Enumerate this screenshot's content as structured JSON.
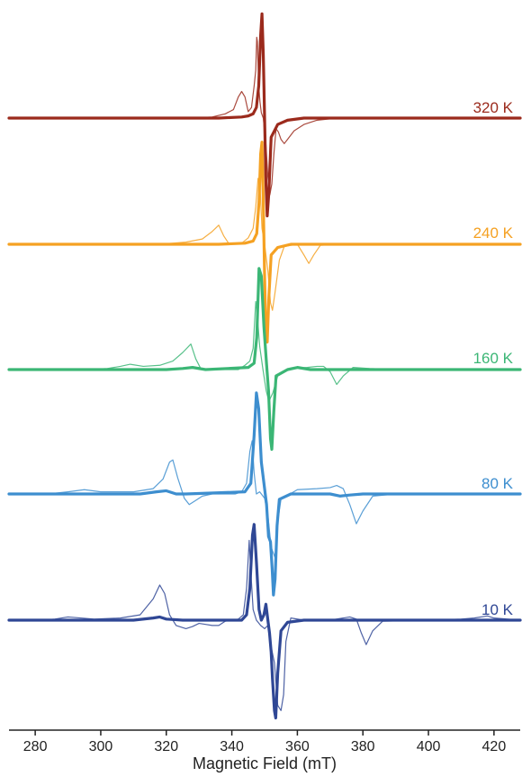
{
  "chart_data": {
    "type": "line",
    "title": "",
    "xlabel": "Magnetic Field (mT)",
    "ylabel": "",
    "xlim": [
      272,
      428
    ],
    "x_ticks": [
      280,
      300,
      320,
      340,
      360,
      380,
      400,
      420
    ],
    "grid": false,
    "legend": "none",
    "series": [
      {
        "name": "320 K",
        "color": "#9b2a1c",
        "thick": [
          [
            272,
            0
          ],
          [
            336,
            0
          ],
          [
            343,
            0.01
          ],
          [
            345,
            0.02
          ],
          [
            346.5,
            0.04
          ],
          [
            347.5,
            0.1
          ],
          [
            348.2,
            0.3
          ],
          [
            348.8,
            0.78
          ],
          [
            349.2,
            0.98
          ],
          [
            349.6,
            0.6
          ],
          [
            350.0,
            0.0
          ],
          [
            350.4,
            -0.6
          ],
          [
            350.8,
            -0.92
          ],
          [
            351.3,
            -0.7
          ],
          [
            352,
            -0.18
          ],
          [
            354,
            -0.06
          ],
          [
            357,
            -0.02
          ],
          [
            362,
            0
          ],
          [
            428,
            0
          ]
        ],
        "thin": [
          [
            272,
            0
          ],
          [
            328,
            0
          ],
          [
            334,
            0.01
          ],
          [
            338,
            0.04
          ],
          [
            340.5,
            0.08
          ],
          [
            342,
            0.2
          ],
          [
            343,
            0.25
          ],
          [
            344,
            0.2
          ],
          [
            345,
            0.06
          ],
          [
            346,
            0.1
          ],
          [
            346.8,
            0.3
          ],
          [
            347.3,
            0.45
          ],
          [
            347.6,
            0.76
          ],
          [
            347.8,
            0.72
          ],
          [
            348.2,
            0.3
          ],
          [
            348.6,
            0.15
          ],
          [
            349,
            0.05
          ],
          [
            349.6,
            0.0
          ],
          [
            350.4,
            -0.25
          ],
          [
            351,
            -0.55
          ],
          [
            351.6,
            -0.72
          ],
          [
            352.2,
            -0.62
          ],
          [
            352.8,
            -0.35
          ],
          [
            353.5,
            -0.1
          ],
          [
            354.2,
            -0.13
          ],
          [
            355,
            -0.2
          ],
          [
            356,
            -0.24
          ],
          [
            357,
            -0.2
          ],
          [
            359,
            -0.12
          ],
          [
            362,
            -0.06
          ],
          [
            366,
            -0.02
          ],
          [
            372,
            0
          ],
          [
            428,
            0
          ]
        ]
      },
      {
        "name": "240 K",
        "color": "#f5a122",
        "thick": [
          [
            272,
            0
          ],
          [
            336,
            0
          ],
          [
            344,
            0.01
          ],
          [
            346.5,
            0.03
          ],
          [
            347.6,
            0.1
          ],
          [
            348.3,
            0.4
          ],
          [
            348.8,
            0.85
          ],
          [
            349.2,
            0.96
          ],
          [
            349.6,
            0.4
          ],
          [
            350.0,
            -0.3
          ],
          [
            350.4,
            -0.85
          ],
          [
            350.8,
            -0.92
          ],
          [
            351.3,
            -0.5
          ],
          [
            352,
            -0.1
          ],
          [
            354,
            -0.03
          ],
          [
            358,
            0
          ],
          [
            428,
            0
          ]
        ],
        "thin": [
          [
            272,
            0
          ],
          [
            318,
            0
          ],
          [
            326,
            0.02
          ],
          [
            331,
            0.05
          ],
          [
            334,
            0.12
          ],
          [
            336,
            0.18
          ],
          [
            337.5,
            0.08
          ],
          [
            339,
            0.01
          ],
          [
            343,
            0.01
          ],
          [
            345,
            0.06
          ],
          [
            346.5,
            0.15
          ],
          [
            347.3,
            0.35
          ],
          [
            348,
            0.62
          ],
          [
            348.6,
            0.55
          ],
          [
            349.2,
            0.15
          ],
          [
            350,
            0.0
          ],
          [
            351,
            -0.25
          ],
          [
            351.8,
            -0.55
          ],
          [
            352.4,
            -0.62
          ],
          [
            353.2,
            -0.45
          ],
          [
            354.5,
            -0.15
          ],
          [
            356,
            -0.02
          ],
          [
            360,
            0.0
          ],
          [
            362,
            -0.1
          ],
          [
            363.5,
            -0.18
          ],
          [
            365,
            -0.1
          ],
          [
            367,
            -0.01
          ],
          [
            372,
            0
          ],
          [
            428,
            0
          ]
        ]
      },
      {
        "name": "160 K",
        "color": "#3bb675",
        "thick": [
          [
            272,
            0
          ],
          [
            320,
            0
          ],
          [
            325,
            0.01
          ],
          [
            328,
            0.02
          ],
          [
            332,
            0.0
          ],
          [
            345,
            0.02
          ],
          [
            346.8,
            0.06
          ],
          [
            347.6,
            0.3
          ],
          [
            348.3,
            0.95
          ],
          [
            349,
            0.88
          ],
          [
            349.8,
            0.4
          ],
          [
            350.6,
            0.05
          ],
          [
            351.2,
            -0.2
          ],
          [
            351.8,
            -0.65
          ],
          [
            352.2,
            -0.75
          ],
          [
            352.8,
            -0.4
          ],
          [
            353.5,
            -0.06
          ],
          [
            357,
            0.0
          ],
          [
            360,
            0.02
          ],
          [
            364,
            0.0
          ],
          [
            428,
            0
          ]
        ],
        "thin": [
          [
            272,
            0
          ],
          [
            296,
            0
          ],
          [
            302,
            0.01
          ],
          [
            306,
            0.03
          ],
          [
            309,
            0.05
          ],
          [
            313,
            0.03
          ],
          [
            318,
            0.04
          ],
          [
            322,
            0.08
          ],
          [
            325,
            0.16
          ],
          [
            327.5,
            0.24
          ],
          [
            329,
            0.1
          ],
          [
            330.5,
            0.01
          ],
          [
            334,
            0.0
          ],
          [
            342,
            0.0
          ],
          [
            344,
            0.04
          ],
          [
            345.5,
            0.08
          ],
          [
            346.5,
            0.2
          ],
          [
            347.3,
            0.64
          ],
          [
            347.8,
            0.5
          ],
          [
            348.5,
            0.22
          ],
          [
            349.5,
            0.0
          ],
          [
            350.5,
            -0.2
          ],
          [
            351.3,
            -0.3
          ],
          [
            352.5,
            -0.22
          ],
          [
            354,
            -0.06
          ],
          [
            358,
            0.01
          ],
          [
            363,
            0.02
          ],
          [
            366,
            0.03
          ],
          [
            368,
            0.03
          ],
          [
            370,
            -0.02
          ],
          [
            372,
            -0.14
          ],
          [
            374,
            -0.06
          ],
          [
            377,
            0.02
          ],
          [
            382,
            0.01
          ],
          [
            390,
            0.0
          ],
          [
            428,
            0
          ]
        ]
      },
      {
        "name": "80 K",
        "color": "#3d8ecf",
        "thick": [
          [
            272,
            0
          ],
          [
            312,
            0
          ],
          [
            317,
            0.02
          ],
          [
            320,
            0.03
          ],
          [
            323,
            0.0
          ],
          [
            326,
            0.0
          ],
          [
            344,
            0.02
          ],
          [
            345.8,
            0.1
          ],
          [
            346.8,
            0.55
          ],
          [
            347.5,
            0.95
          ],
          [
            348.2,
            0.8
          ],
          [
            349,
            0.3
          ],
          [
            350,
            0.05
          ],
          [
            350.6,
            -0.1
          ],
          [
            351.2,
            -0.4
          ],
          [
            351.8,
            -0.45
          ],
          [
            352.3,
            -0.7
          ],
          [
            352.7,
            -0.95
          ],
          [
            353.2,
            -0.8
          ],
          [
            353.8,
            -0.3
          ],
          [
            354.5,
            -0.05
          ],
          [
            358,
            0.0
          ],
          [
            370,
            0.0
          ],
          [
            373,
            -0.02
          ],
          [
            376,
            -0.01
          ],
          [
            380,
            0.0
          ],
          [
            428,
            0
          ]
        ],
        "thin": [
          [
            272,
            0
          ],
          [
            284,
            0.0
          ],
          [
            290,
            0.02
          ],
          [
            295,
            0.04
          ],
          [
            300,
            0.02
          ],
          [
            310,
            0.02
          ],
          [
            316,
            0.05
          ],
          [
            319,
            0.14
          ],
          [
            321,
            0.3
          ],
          [
            322,
            0.32
          ],
          [
            323.5,
            0.15
          ],
          [
            325.5,
            -0.04
          ],
          [
            327,
            -0.1
          ],
          [
            329,
            -0.06
          ],
          [
            331,
            -0.02
          ],
          [
            334,
            0.0
          ],
          [
            341,
            0.0
          ],
          [
            343,
            0.02
          ],
          [
            344.5,
            0.1
          ],
          [
            345.5,
            0.4
          ],
          [
            346.2,
            0.5
          ],
          [
            346.8,
            0.2
          ],
          [
            347.5,
            0.0
          ],
          [
            348.5,
            0.02
          ],
          [
            350,
            -0.04
          ],
          [
            351,
            -0.2
          ],
          [
            352,
            -0.5
          ],
          [
            353.2,
            -0.6
          ],
          [
            353.8,
            -0.3
          ],
          [
            355,
            -0.05
          ],
          [
            360,
            0.04
          ],
          [
            366,
            0.05
          ],
          [
            370,
            0.06
          ],
          [
            372,
            0.08
          ],
          [
            374,
            0.05
          ],
          [
            376,
            -0.1
          ],
          [
            378,
            -0.28
          ],
          [
            380,
            -0.16
          ],
          [
            383,
            -0.02
          ],
          [
            390,
            0.0
          ],
          [
            400,
            0.0
          ],
          [
            428,
            0
          ]
        ]
      },
      {
        "name": "10 K",
        "color": "#2f4795",
        "thick": [
          [
            272,
            0
          ],
          [
            310,
            0.0
          ],
          [
            316,
            0.02
          ],
          [
            318,
            0.03
          ],
          [
            320,
            0.01
          ],
          [
            325,
            0.0
          ],
          [
            343,
            0.0
          ],
          [
            344.5,
            0.05
          ],
          [
            345.5,
            0.3
          ],
          [
            346.3,
            0.8
          ],
          [
            346.8,
            0.9
          ],
          [
            347.5,
            0.55
          ],
          [
            348.3,
            0.1
          ],
          [
            349,
            0.0
          ],
          [
            349.8,
            0.05
          ],
          [
            350.4,
            0.15
          ],
          [
            351,
            0.0
          ],
          [
            351.5,
            -0.12
          ],
          [
            352,
            -0.3
          ],
          [
            352.4,
            -0.55
          ],
          [
            353,
            -0.85
          ],
          [
            353.4,
            -0.92
          ],
          [
            354,
            -0.5
          ],
          [
            355,
            -0.1
          ],
          [
            357,
            -0.02
          ],
          [
            362,
            0.0
          ],
          [
            380,
            0.0
          ],
          [
            395,
            0.0
          ],
          [
            428,
            0
          ]
        ],
        "thin": [
          [
            272,
            0
          ],
          [
            282,
            0.0
          ],
          [
            286,
            0.01
          ],
          [
            290,
            0.03
          ],
          [
            298,
            0.01
          ],
          [
            306,
            0.02
          ],
          [
            312,
            0.05
          ],
          [
            316,
            0.2
          ],
          [
            318,
            0.33
          ],
          [
            319.5,
            0.25
          ],
          [
            321,
            0.05
          ],
          [
            323,
            -0.05
          ],
          [
            326,
            -0.08
          ],
          [
            328,
            -0.06
          ],
          [
            330,
            -0.03
          ],
          [
            332,
            -0.04
          ],
          [
            334,
            -0.05
          ],
          [
            336,
            -0.05
          ],
          [
            338,
            -0.01
          ],
          [
            340,
            0.0
          ],
          [
            342,
            0.01
          ],
          [
            343.5,
            0.05
          ],
          [
            344.5,
            0.3
          ],
          [
            345.3,
            0.75
          ],
          [
            345.8,
            0.45
          ],
          [
            346.5,
            0.1
          ],
          [
            347.5,
            0.0
          ],
          [
            348.8,
            -0.05
          ],
          [
            350,
            -0.08
          ],
          [
            351,
            -0.05
          ],
          [
            352,
            -0.25
          ],
          [
            353,
            -0.4
          ],
          [
            354,
            -0.8
          ],
          [
            355,
            -0.85
          ],
          [
            355.8,
            -0.7
          ],
          [
            356.5,
            -0.2
          ],
          [
            358,
            0.02
          ],
          [
            362,
            0.0
          ],
          [
            370,
            0.0
          ],
          [
            376,
            0.03
          ],
          [
            378,
            0.01
          ],
          [
            379.5,
            -0.12
          ],
          [
            381,
            -0.23
          ],
          [
            383,
            -0.1
          ],
          [
            386,
            -0.01
          ],
          [
            400,
            0.0
          ],
          [
            410,
            0.01
          ],
          [
            414,
            0.02
          ],
          [
            418,
            0.04
          ],
          [
            420,
            0.02
          ],
          [
            428,
            0
          ]
        ]
      }
    ]
  }
}
